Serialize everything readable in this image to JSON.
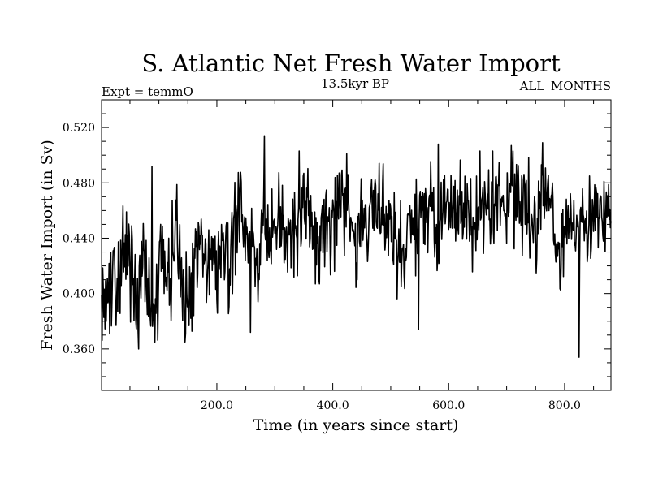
{
  "chart_data": {
    "type": "line",
    "title": "S. Atlantic Net Fresh Water Import",
    "subtitle_left": "Expt = temmO",
    "subtitle_center": "13.5kyr BP",
    "subtitle_right": "ALL_MONTHS",
    "xlabel": "Time (in years since start)",
    "ylabel": "Fresh Water Import (in Sv)",
    "xlim": [
      1,
      880
    ],
    "ylim": [
      0.33,
      0.54
    ],
    "x_ticks": [
      {
        "value": 200,
        "label": "200.0"
      },
      {
        "value": 400,
        "label": "400.0"
      },
      {
        "value": 600,
        "label": "600.0"
      },
      {
        "value": 800,
        "label": "800.0"
      }
    ],
    "y_ticks": [
      {
        "value": 0.36,
        "label": "0.360"
      },
      {
        "value": 0.4,
        "label": "0.400"
      },
      {
        "value": 0.44,
        "label": "0.440"
      },
      {
        "value": 0.48,
        "label": "0.480"
      },
      {
        "value": 0.52,
        "label": "0.520"
      }
    ],
    "x_minor_step": 50,
    "y_minor_step": 0.01,
    "series": [
      {
        "name": "S. Atlantic net fresh water import",
        "x_start": 1,
        "x_step": 10,
        "values": [
          0.412,
          0.398,
          0.425,
          0.408,
          0.435,
          0.418,
          0.39,
          0.428,
          0.402,
          0.375,
          0.415,
          0.432,
          0.41,
          0.46,
          0.405,
          0.398,
          0.42,
          0.44,
          0.415,
          0.428,
          0.418,
          0.435,
          0.412,
          0.448,
          0.47,
          0.43,
          0.445,
          0.412,
          0.452,
          0.44,
          0.458,
          0.462,
          0.438,
          0.455,
          0.448,
          0.465,
          0.452,
          0.445,
          0.44,
          0.458,
          0.45,
          0.462,
          0.468,
          0.455,
          0.45,
          0.458,
          0.445,
          0.462,
          0.455,
          0.465,
          0.435,
          0.44,
          0.418,
          0.448,
          0.452,
          0.465,
          0.458,
          0.46,
          0.445,
          0.458,
          0.47,
          0.452,
          0.458,
          0.448,
          0.455,
          0.462,
          0.45,
          0.458,
          0.468,
          0.475,
          0.472,
          0.465,
          0.468,
          0.47,
          0.458,
          0.44,
          0.478,
          0.47,
          0.442,
          0.418,
          0.455,
          0.462,
          0.45,
          0.458,
          0.44,
          0.455,
          0.462,
          0.45
        ]
      }
    ],
    "extremes": [
      {
        "x": 282,
        "y": 0.514
      },
      {
        "x": 65,
        "y": 0.36
      },
      {
        "x": 258,
        "y": 0.372
      },
      {
        "x": 548,
        "y": 0.374
      },
      {
        "x": 825,
        "y": 0.354
      },
      {
        "x": 708,
        "y": 0.507
      },
      {
        "x": 762,
        "y": 0.509
      },
      {
        "x": 582,
        "y": 0.508
      },
      {
        "x": 88,
        "y": 0.492
      },
      {
        "x": 342,
        "y": 0.503
      }
    ]
  }
}
